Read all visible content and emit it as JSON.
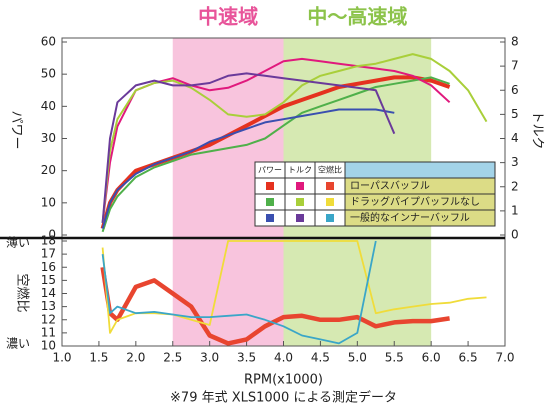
{
  "bands": [
    {
      "label": "中速域",
      "from": 2.5,
      "to": 4.0,
      "color": "#f8c4dd",
      "text_color": "#e8549a"
    },
    {
      "label": "中〜高速域",
      "from": 4.0,
      "to": 6.0,
      "color": "#d6e9b2",
      "text_color": "#8cc34a"
    }
  ],
  "legend": {
    "headers": [
      "パワー",
      "トルク",
      "空燃比"
    ],
    "rows": [
      "ローパスバッフル",
      "ドラッグパイプバッフルなし",
      "一般的なインナーバッフル"
    ]
  },
  "footnote": "※79 年式 XLS1000 による測定データ",
  "chart_data": [
    {
      "type": "line",
      "y_label": "パワー",
      "y2_label": "トルク",
      "x": [
        1.55,
        1.65,
        1.75,
        2.0,
        2.25,
        2.5,
        2.75,
        3.0,
        3.25,
        3.5,
        3.75,
        4.0,
        4.25,
        4.5,
        4.75,
        5.0,
        5.25,
        5.5,
        5.75,
        6.0,
        6.25,
        6.5,
        6.75
      ],
      "xlim": [
        1.0,
        7.0
      ],
      "ylim": [
        0,
        60
      ],
      "yticks": [
        0,
        10,
        20,
        30,
        40,
        50,
        60
      ],
      "y2lim": [
        0,
        8
      ],
      "y2ticks": [
        0,
        1,
        2,
        3,
        4,
        5,
        6,
        7,
        8
      ],
      "series": [
        {
          "color": "#e5321f",
          "values": [
            2,
            10,
            14,
            20,
            22,
            24,
            26,
            28,
            31,
            34,
            37,
            40,
            42,
            44,
            46,
            47,
            48,
            49,
            49,
            48,
            46,
            null,
            null
          ]
        },
        {
          "color": "#4fb04a",
          "values": [
            1,
            8,
            12,
            18,
            21,
            23,
            25,
            26,
            27,
            28,
            30,
            34,
            38,
            40,
            42,
            44,
            46,
            47,
            48,
            49,
            47,
            null,
            null
          ]
        },
        {
          "color": "#3a4fb0",
          "values": [
            2,
            10,
            14,
            19,
            22,
            24,
            26,
            29,
            31,
            33,
            35,
            36,
            37,
            38,
            39,
            39,
            39,
            38,
            null,
            null,
            null,
            null,
            null
          ]
        },
        {
          "color": "#e0197d",
          "axis": "y2",
          "values": [
            0.5,
            3,
            4.5,
            6,
            6.3,
            6.5,
            6.2,
            6.0,
            6.1,
            6.4,
            6.8,
            7.2,
            7.3,
            7.2,
            7.1,
            7.0,
            6.9,
            6.8,
            6.6,
            6.2,
            5.5,
            null,
            null
          ]
        },
        {
          "color": "#a9cf3a",
          "axis": "y2",
          "values": [
            0.5,
            3.5,
            4.8,
            6.0,
            6.3,
            6.4,
            6.1,
            5.6,
            5.0,
            4.9,
            5.0,
            5.5,
            6.2,
            6.6,
            6.8,
            7.0,
            7.1,
            7.3,
            7.5,
            7.3,
            6.8,
            6.0,
            4.7
          ]
        },
        {
          "color": "#6a3a9a",
          "axis": "y2",
          "values": [
            0.5,
            4,
            5.5,
            6.2,
            6.4,
            6.2,
            6.2,
            6.3,
            6.6,
            6.7,
            6.6,
            6.5,
            6.4,
            6.3,
            6.2,
            6.1,
            6.0,
            4.2,
            null,
            null,
            null,
            null,
            null
          ]
        }
      ]
    },
    {
      "type": "line",
      "y_label": "空燃比",
      "y_top_label": "薄い",
      "y_bottom_label": "濃い",
      "x_label": "RPM(x1000)",
      "x": [
        1.55,
        1.65,
        1.75,
        2.0,
        2.25,
        2.5,
        2.75,
        3.0,
        3.25,
        3.5,
        3.75,
        4.0,
        4.25,
        4.5,
        4.75,
        5.0,
        5.25,
        5.5,
        5.75,
        6.0,
        6.25,
        6.5,
        6.75
      ],
      "xlim": [
        1.0,
        7.0
      ],
      "xticks": [
        {
          "value": 1,
          "label": "1.0"
        },
        {
          "value": 1.5,
          "label": "1.5"
        },
        {
          "value": 2,
          "label": "2.0"
        },
        {
          "value": 2.5,
          "label": "2.5"
        },
        {
          "value": 3,
          "label": "3.0"
        },
        {
          "value": 3.5,
          "label": "3.5"
        },
        {
          "value": 4,
          "label": "4.0"
        },
        {
          "value": 4.5,
          "label": "4.5"
        },
        {
          "value": 5,
          "label": "5.0"
        },
        {
          "value": 5.5,
          "label": "5.5"
        },
        {
          "value": 6,
          "label": "6.0"
        },
        {
          "value": 6.5,
          "label": "6.5"
        },
        {
          "value": 7,
          "label": "7.0"
        }
      ],
      "ylim": [
        10,
        18
      ],
      "yticks": [
        10,
        11,
        12,
        13,
        14,
        15,
        16,
        17,
        18
      ],
      "series": [
        {
          "color": "#e8452f",
          "values": [
            16,
            12.5,
            12,
            14.5,
            15,
            14,
            13,
            10.8,
            10.2,
            10.5,
            11.5,
            12.2,
            12.3,
            12.0,
            12.0,
            12.2,
            11.5,
            11.8,
            11.9,
            11.9,
            12.1,
            null,
            null
          ]
        },
        {
          "color": "#f0dc3a",
          "values": [
            17.5,
            11,
            12,
            12.5,
            12.5,
            12.4,
            12,
            11.6,
            18,
            18,
            18,
            18,
            18,
            18,
            18,
            18,
            12.5,
            12.8,
            13.0,
            13.2,
            13.3,
            13.6,
            13.7
          ]
        },
        {
          "color": "#3aa6c8",
          "values": [
            17,
            12.5,
            13,
            12.5,
            12.6,
            12.4,
            12.2,
            12.2,
            12.3,
            12.4,
            12.0,
            11.5,
            10.8,
            10.5,
            10.2,
            11.0,
            18,
            null,
            null,
            null,
            null,
            null,
            null
          ]
        }
      ]
    }
  ]
}
